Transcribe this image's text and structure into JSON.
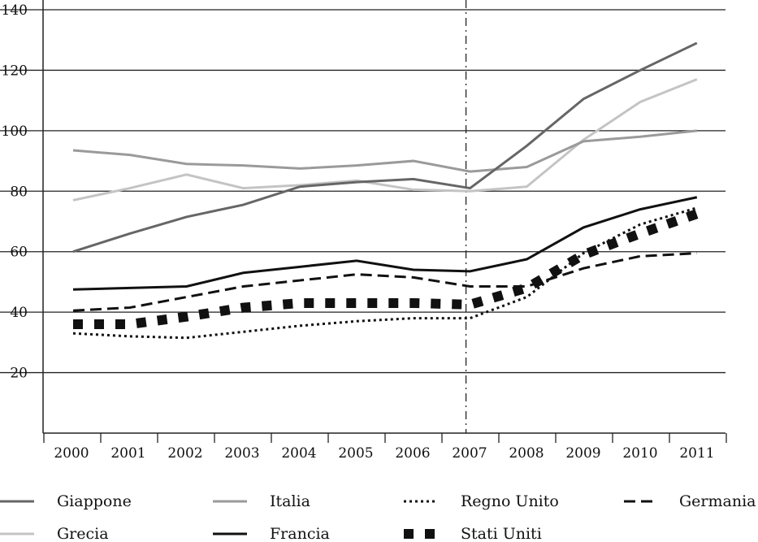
{
  "chart_data": {
    "type": "line",
    "title": "",
    "xlabel": "",
    "ylabel": "",
    "ylim": [
      0,
      140
    ],
    "yticks": [
      20,
      40,
      60,
      80,
      100,
      120,
      140
    ],
    "grid": "horizontal",
    "legend_position": "bottom",
    "marker_line_year": 2007,
    "x": [
      "2000",
      "2001",
      "2002",
      "2003",
      "2004",
      "2005",
      "2006",
      "2007",
      "2008",
      "2009",
      "2010",
      "2011"
    ],
    "series": [
      {
        "name": "Giappone",
        "color": "#666666",
        "style": "solid",
        "values": [
          60,
          66,
          71.5,
          75.5,
          81.5,
          83,
          84,
          81,
          95,
          110.5,
          120,
          129
        ]
      },
      {
        "name": "Italia",
        "color": "#9a9a9a",
        "style": "solid",
        "values": [
          93.5,
          92,
          89,
          88.5,
          87.5,
          88.5,
          90,
          86.5,
          88,
          96.5,
          98,
          100
        ]
      },
      {
        "name": "Regno Unito",
        "color": "#111111",
        "style": "dotted",
        "values": [
          33,
          32,
          31.5,
          33.5,
          35.5,
          37,
          38,
          38,
          45,
          59.5,
          69,
          74.5
        ]
      },
      {
        "name": "Germania",
        "color": "#111111",
        "style": "dashed",
        "values": [
          40.5,
          41.5,
          45,
          48.5,
          50.5,
          52.5,
          51.5,
          48.5,
          48.5,
          54.5,
          58.5,
          59.5
        ]
      },
      {
        "name": "Grecia",
        "color": "#c4c4c4",
        "style": "solid",
        "values": [
          77,
          81,
          85.5,
          81,
          82,
          83.5,
          80.5,
          80,
          81.5,
          97,
          109.5,
          117
        ]
      },
      {
        "name": "Francia",
        "color": "#111111",
        "style": "solid",
        "values": [
          47.5,
          48,
          48.5,
          53,
          55,
          57,
          54,
          53.5,
          57.5,
          68,
          74,
          78
        ]
      },
      {
        "name": "Stati Uniti",
        "color": "#111111",
        "style": "squares",
        "values": [
          36,
          36,
          38.5,
          41.5,
          43,
          43,
          43,
          42.5,
          48,
          59,
          66,
          72.5
        ]
      }
    ]
  }
}
